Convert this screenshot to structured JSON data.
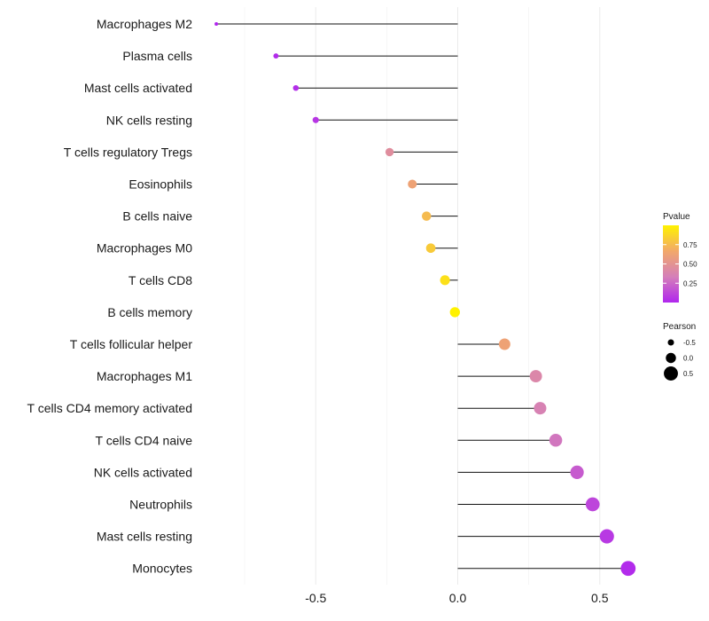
{
  "chart_data": {
    "type": "lollipop",
    "title": "",
    "xlabel": "",
    "ylabel": "",
    "xlim": [
      -0.9,
      0.64
    ],
    "xticks": [
      -0.5,
      0.0,
      0.5
    ],
    "xtick_labels": [
      "-0.5",
      "0.0",
      "0.5"
    ],
    "grid": true,
    "categories": [
      "Macrophages M2",
      "Plasma cells",
      "Mast cells activated",
      "NK cells resting",
      "T cells regulatory  Tregs ",
      "Eosinophils",
      "B cells naive",
      "Macrophages M0",
      "T cells CD8",
      "B cells memory",
      "T cells follicular helper",
      "Macrophages M1",
      "T cells CD4 memory activated",
      "T cells CD4 naive",
      "NK cells activated",
      "Neutrophils",
      "Mast cells resting",
      "Monocytes"
    ],
    "pearson": [
      -0.85,
      -0.64,
      -0.57,
      -0.5,
      -0.24,
      -0.16,
      -0.11,
      -0.095,
      -0.045,
      -0.01,
      0.165,
      0.275,
      0.29,
      0.345,
      0.42,
      0.475,
      0.525,
      0.6
    ],
    "pvalue": [
      0.0,
      0.02,
      0.03,
      0.06,
      0.45,
      0.62,
      0.75,
      0.82,
      0.92,
      1.0,
      0.62,
      0.4,
      0.36,
      0.3,
      0.2,
      0.12,
      0.07,
      0.02
    ],
    "legend_color": {
      "title": "Pvalue",
      "ticks": [
        0.25,
        0.5,
        0.75
      ],
      "tick_labels": [
        "0.25",
        "0.50",
        "0.75"
      ],
      "range": [
        0.0,
        1.0
      ],
      "colors": [
        "#b026ee",
        "#d57fb9",
        "#f2a86a",
        "#fff200"
      ]
    },
    "legend_size": {
      "title": "Pearson",
      "ticks": [
        -0.5,
        0.0,
        0.5
      ],
      "tick_labels": [
        "-0.5",
        "0.0",
        "0.5"
      ]
    }
  }
}
